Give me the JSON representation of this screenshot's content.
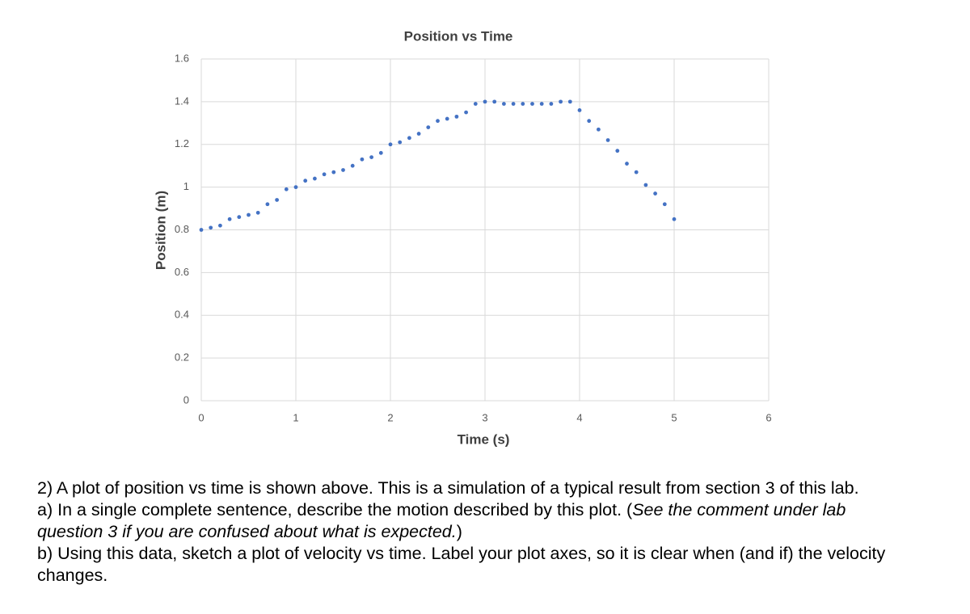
{
  "chart_data": {
    "type": "scatter",
    "title": "Position vs Time",
    "x_label": "Time (s)",
    "y_label": "Position (m)",
    "x": [
      0,
      0.1,
      0.2,
      0.3,
      0.4,
      0.5,
      0.6,
      0.7,
      0.8,
      0.9,
      1.0,
      1.1,
      1.2,
      1.3,
      1.4,
      1.5,
      1.6,
      1.7,
      1.8,
      1.9,
      2.0,
      2.1,
      2.2,
      2.3,
      2.4,
      2.5,
      2.6,
      2.7,
      2.8,
      2.9,
      3.0,
      3.1,
      3.2,
      3.3,
      3.4,
      3.5,
      3.6,
      3.7,
      3.8,
      3.9,
      4.0,
      4.1,
      4.2,
      4.3,
      4.4,
      4.5,
      4.6,
      4.7,
      4.8,
      4.9,
      5.0
    ],
    "values": [
      0.8,
      0.81,
      0.82,
      0.85,
      0.86,
      0.87,
      0.88,
      0.92,
      0.94,
      0.99,
      1.0,
      1.03,
      1.04,
      1.06,
      1.07,
      1.08,
      1.1,
      1.13,
      1.14,
      1.16,
      1.2,
      1.21,
      1.23,
      1.25,
      1.28,
      1.31,
      1.32,
      1.33,
      1.35,
      1.39,
      1.4,
      1.4,
      1.39,
      1.39,
      1.39,
      1.39,
      1.39,
      1.39,
      1.4,
      1.4,
      1.36,
      1.31,
      1.27,
      1.22,
      1.17,
      1.11,
      1.07,
      1.01,
      0.97,
      0.92,
      0.85
    ],
    "color": "#4472c4",
    "xlim": [
      0,
      6
    ],
    "xticks": [
      0,
      1,
      2,
      3,
      4,
      5,
      6
    ],
    "ylim": [
      0,
      1.6
    ],
    "yticks": [
      0,
      0.2,
      0.4,
      0.6,
      0.8,
      1,
      1.2,
      1.4,
      1.6
    ],
    "grid": true
  },
  "question": {
    "intro": "2) A plot of position vs time is shown above. This is a simulation of a typical result from section 3 of this lab.",
    "part_a": [
      "a) In a single complete sentence, describe the motion described by this plot. (",
      "See the comment under lab question 3 if you are confused about what is expected.",
      ")"
    ],
    "part_b": "b) Using this data, sketch a plot of velocity vs time. Label your plot axes, so it is clear when (and if) the velocity changes."
  }
}
